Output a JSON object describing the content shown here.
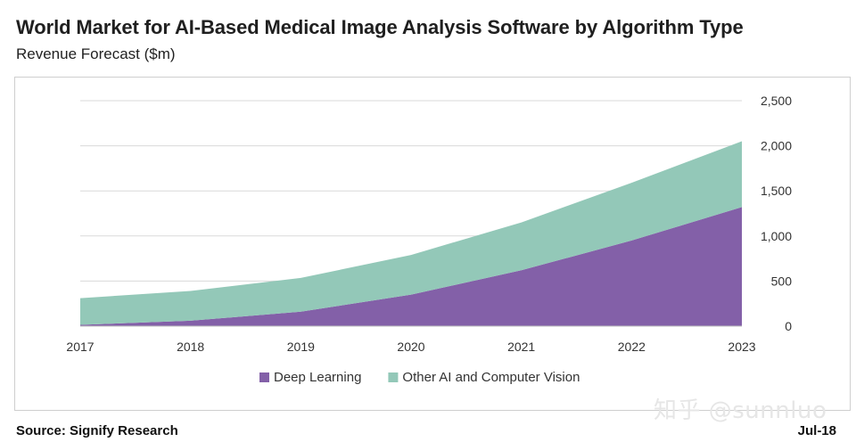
{
  "header": {
    "title": "World Market for AI-Based Medical Image Analysis Software by Algorithm Type",
    "subtitle": "Revenue Forecast ($m)"
  },
  "footer": {
    "source": "Source: Signify Research",
    "date": "Jul-18"
  },
  "watermark": "知乎 @sunnluo",
  "colors": {
    "deep_learning": "#8360a8",
    "other_ai": "#93c8b8",
    "grid": "#d9d9d9",
    "axis": "#bfbfbf"
  },
  "chart_data": {
    "type": "area",
    "stacked": true,
    "title": "World Market for AI-Based Medical Image Analysis Software by Algorithm Type",
    "subtitle": "Revenue Forecast ($m)",
    "x": [
      "2017",
      "2018",
      "2019",
      "2020",
      "2021",
      "2022",
      "2023"
    ],
    "ylim": [
      0,
      2500
    ],
    "yticks": [
      0,
      500,
      1000,
      1500,
      2000,
      2500
    ],
    "ytick_labels": [
      "0",
      "500",
      "1,000",
      "1,500",
      "2,000",
      "2,500"
    ],
    "y_axis_side": "right",
    "grid": true,
    "legend_position": "bottom",
    "series": [
      {
        "name": "Deep Learning",
        "color": "#8360a8",
        "values": [
          15,
          60,
          160,
          350,
          620,
          950,
          1320
        ]
      },
      {
        "name": "Other AI and Computer Vision",
        "color": "#93c8b8",
        "values": [
          295,
          330,
          375,
          440,
          530,
          640,
          730
        ]
      }
    ]
  }
}
